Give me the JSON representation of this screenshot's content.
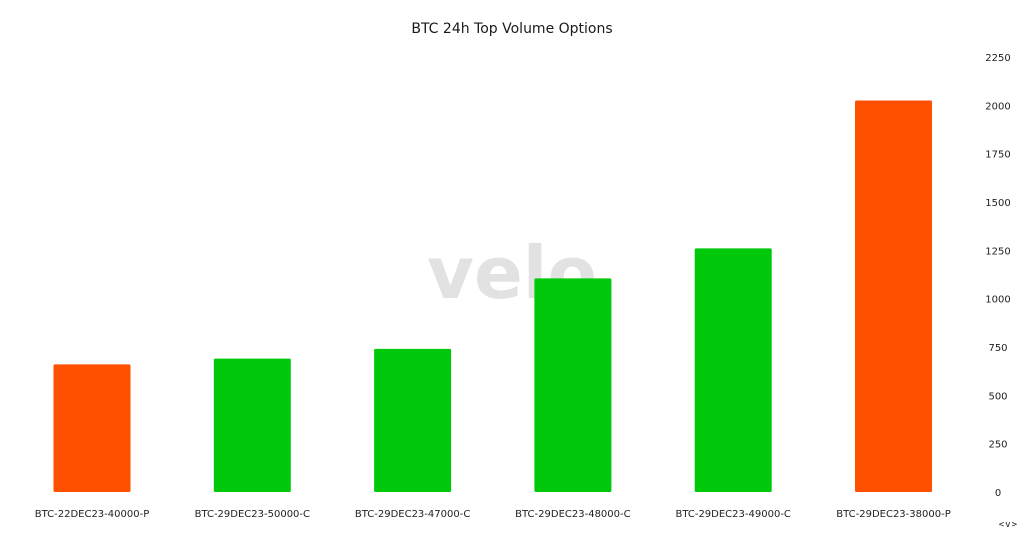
{
  "chart_data": {
    "type": "bar",
    "title": "BTC 24h Top Volume Options",
    "xlabel": "",
    "ylabel": "",
    "ylim": [
      0,
      2250
    ],
    "yticks": [
      0,
      250,
      500,
      750,
      1000,
      1250,
      1500,
      1750,
      2000,
      2250
    ],
    "y_axis_position": "right",
    "grid": false,
    "categories": [
      "BTC-22DEC23-40000-P",
      "BTC-29DEC23-50000-C",
      "BTC-29DEC23-47000-C",
      "BTC-29DEC23-48000-C",
      "BTC-29DEC23-49000-C",
      "BTC-29DEC23-38000-P"
    ],
    "values": [
      660,
      690,
      740,
      1105,
      1260,
      2025
    ],
    "colors": [
      "#ff5000",
      "#00c80a",
      "#00c80a",
      "#00c80a",
      "#00c80a",
      "#ff5000"
    ]
  },
  "watermark": "velo",
  "nav_control": "<v>"
}
